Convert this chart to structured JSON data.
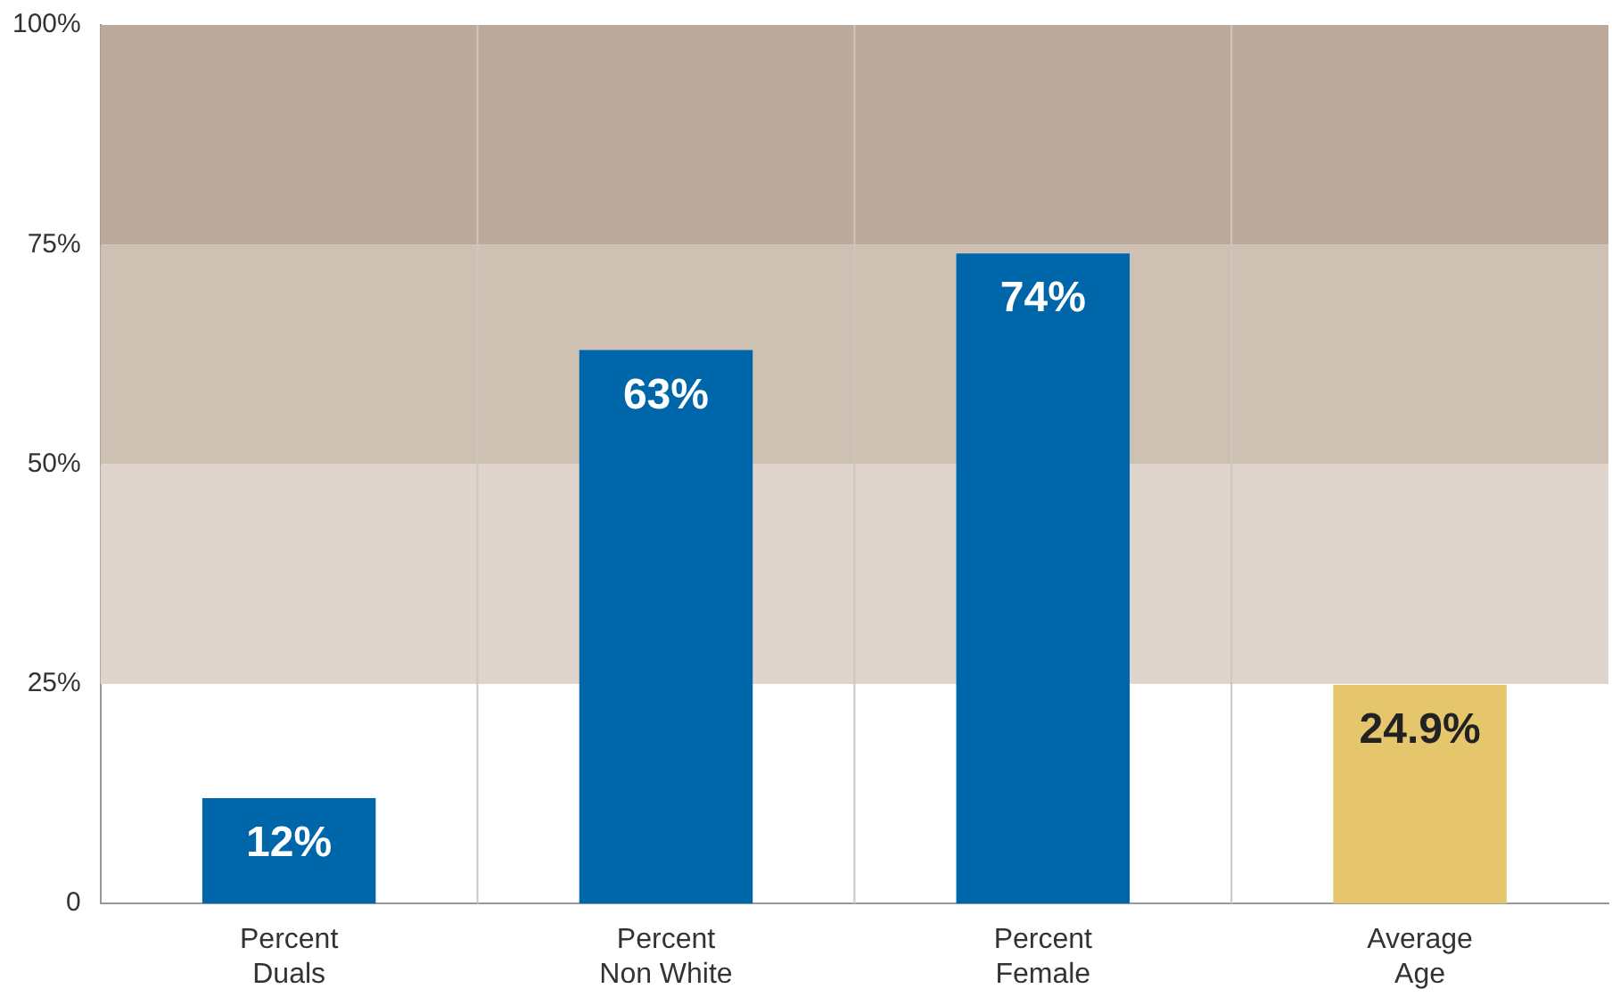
{
  "chart_data": {
    "type": "bar",
    "categories": [
      "Percent Duals",
      "Percent Non White",
      "Percent Female",
      "Average Age"
    ],
    "values": [
      12,
      63,
      74,
      24.9
    ],
    "colors": [
      "#0066aa",
      "#0066aa",
      "#0066aa",
      "#e6c66c"
    ],
    "value_labels": [
      "12%",
      "63%",
      "74%",
      "24.9%"
    ],
    "ylim": [
      0,
      100
    ],
    "yticks": [
      {
        "value": 0,
        "label": "0"
      },
      {
        "value": 25,
        "label": "25%"
      },
      {
        "value": 50,
        "label": "50%"
      },
      {
        "value": 75,
        "label": "75%"
      },
      {
        "value": 100,
        "label": "100%"
      }
    ],
    "bands": [
      {
        "axis": "y",
        "from": 25,
        "to": 50,
        "color": "#e0d5cc"
      },
      {
        "axis": "y",
        "from": 50,
        "to": 75,
        "color": "#cfc0b4"
      },
      {
        "axis": "y",
        "from": 75,
        "to": 100,
        "color": "#bba99b"
      }
    ],
    "grid": "x"
  }
}
